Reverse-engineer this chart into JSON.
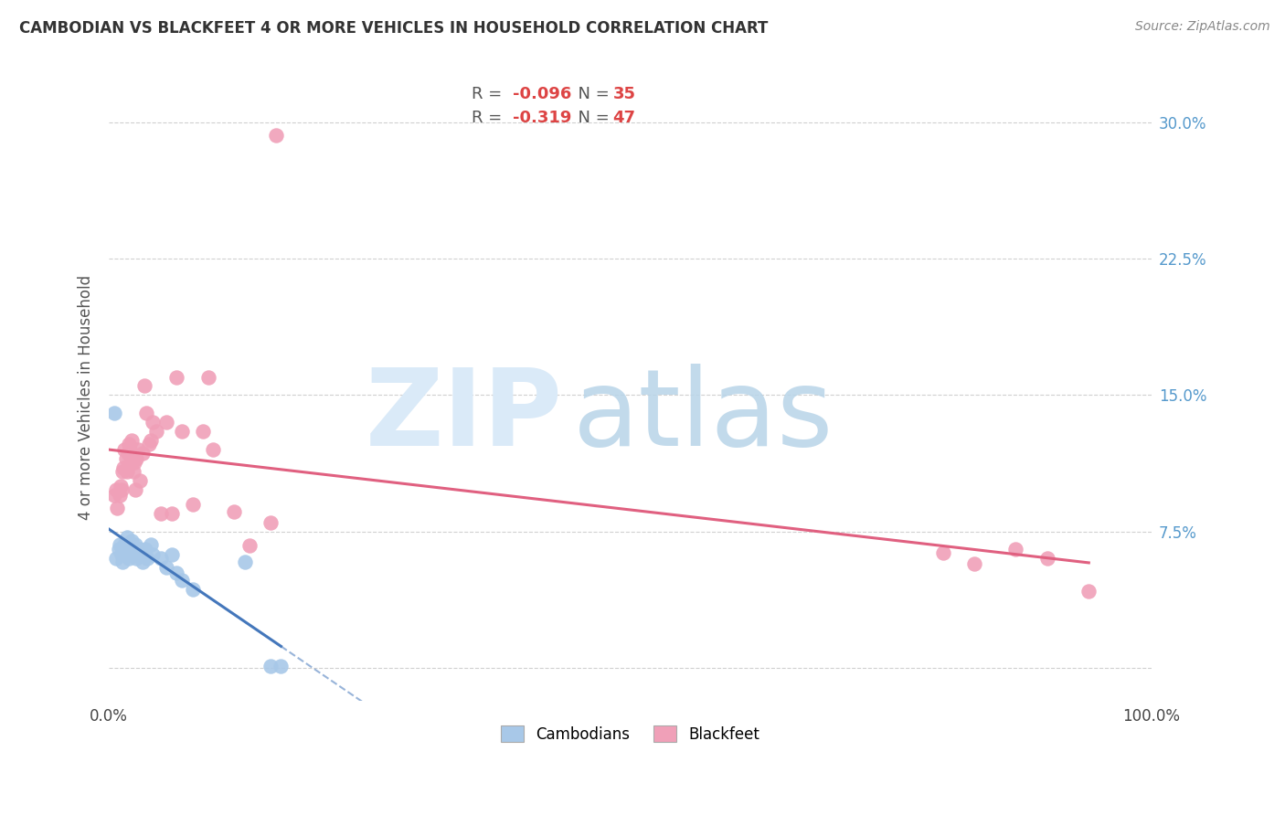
{
  "title": "CAMBODIAN VS BLACKFEET 4 OR MORE VEHICLES IN HOUSEHOLD CORRELATION CHART",
  "source": "Source: ZipAtlas.com",
  "ylabel": "4 or more Vehicles in Household",
  "xlim": [
    0.0,
    1.0
  ],
  "ylim": [
    -0.018,
    0.315
  ],
  "ytick_vals": [
    0.0,
    0.075,
    0.15,
    0.225,
    0.3
  ],
  "ytick_labels": [
    "",
    "7.5%",
    "15.0%",
    "22.5%",
    "30.0%"
  ],
  "xtick_vals": [
    0.0,
    0.1,
    0.2,
    0.3,
    0.4,
    0.5,
    0.6,
    0.7,
    0.8,
    0.9,
    1.0
  ],
  "xtick_labels": [
    "0.0%",
    "",
    "",
    "",
    "",
    "",
    "",
    "",
    "",
    "",
    "100.0%"
  ],
  "grid_color": "#d0d0d0",
  "bg_color": "#ffffff",
  "cam_dot_color": "#a8c8e8",
  "bf_dot_color": "#f0a0b8",
  "cam_line_color": "#4477bb",
  "bf_line_color": "#e06080",
  "axis_label_color": "#5599cc",
  "title_color": "#333333",
  "source_color": "#888888",
  "legend_r_color": "#dd4444",
  "legend_label_color": "#555555",
  "cam_legend_r": "-0.096",
  "cam_legend_n": "35",
  "bf_legend_r": "-0.319",
  "bf_legend_n": "47",
  "cam_x": [
    0.005,
    0.007,
    0.009,
    0.01,
    0.012,
    0.013,
    0.015,
    0.015,
    0.017,
    0.018,
    0.019,
    0.02,
    0.021,
    0.022,
    0.023,
    0.024,
    0.025,
    0.026,
    0.027,
    0.028,
    0.03,
    0.032,
    0.035,
    0.037,
    0.04,
    0.042,
    0.05,
    0.055,
    0.06,
    0.065,
    0.07,
    0.08,
    0.13,
    0.155,
    0.165
  ],
  "cam_y": [
    0.14,
    0.06,
    0.065,
    0.068,
    0.062,
    0.058,
    0.068,
    0.063,
    0.072,
    0.065,
    0.06,
    0.063,
    0.068,
    0.07,
    0.065,
    0.062,
    0.068,
    0.06,
    0.063,
    0.062,
    0.065,
    0.058,
    0.065,
    0.06,
    0.068,
    0.062,
    0.06,
    0.055,
    0.062,
    0.052,
    0.048,
    0.043,
    0.058,
    0.001,
    0.001
  ],
  "bf_x": [
    0.005,
    0.007,
    0.008,
    0.01,
    0.011,
    0.012,
    0.013,
    0.014,
    0.015,
    0.016,
    0.017,
    0.018,
    0.019,
    0.02,
    0.021,
    0.022,
    0.023,
    0.024,
    0.025,
    0.026,
    0.028,
    0.03,
    0.032,
    0.034,
    0.036,
    0.038,
    0.04,
    0.042,
    0.045,
    0.05,
    0.055,
    0.06,
    0.065,
    0.07,
    0.08,
    0.09,
    0.095,
    0.1,
    0.12,
    0.135,
    0.155,
    0.16,
    0.8,
    0.83,
    0.87,
    0.9,
    0.94
  ],
  "bf_y": [
    0.095,
    0.098,
    0.088,
    0.095,
    0.1,
    0.098,
    0.108,
    0.11,
    0.12,
    0.115,
    0.108,
    0.118,
    0.123,
    0.12,
    0.115,
    0.125,
    0.108,
    0.113,
    0.098,
    0.115,
    0.12,
    0.103,
    0.118,
    0.155,
    0.14,
    0.123,
    0.125,
    0.135,
    0.13,
    0.085,
    0.135,
    0.085,
    0.16,
    0.13,
    0.09,
    0.13,
    0.16,
    0.12,
    0.086,
    0.067,
    0.08,
    0.293,
    0.063,
    0.057,
    0.065,
    0.06,
    0.042
  ]
}
